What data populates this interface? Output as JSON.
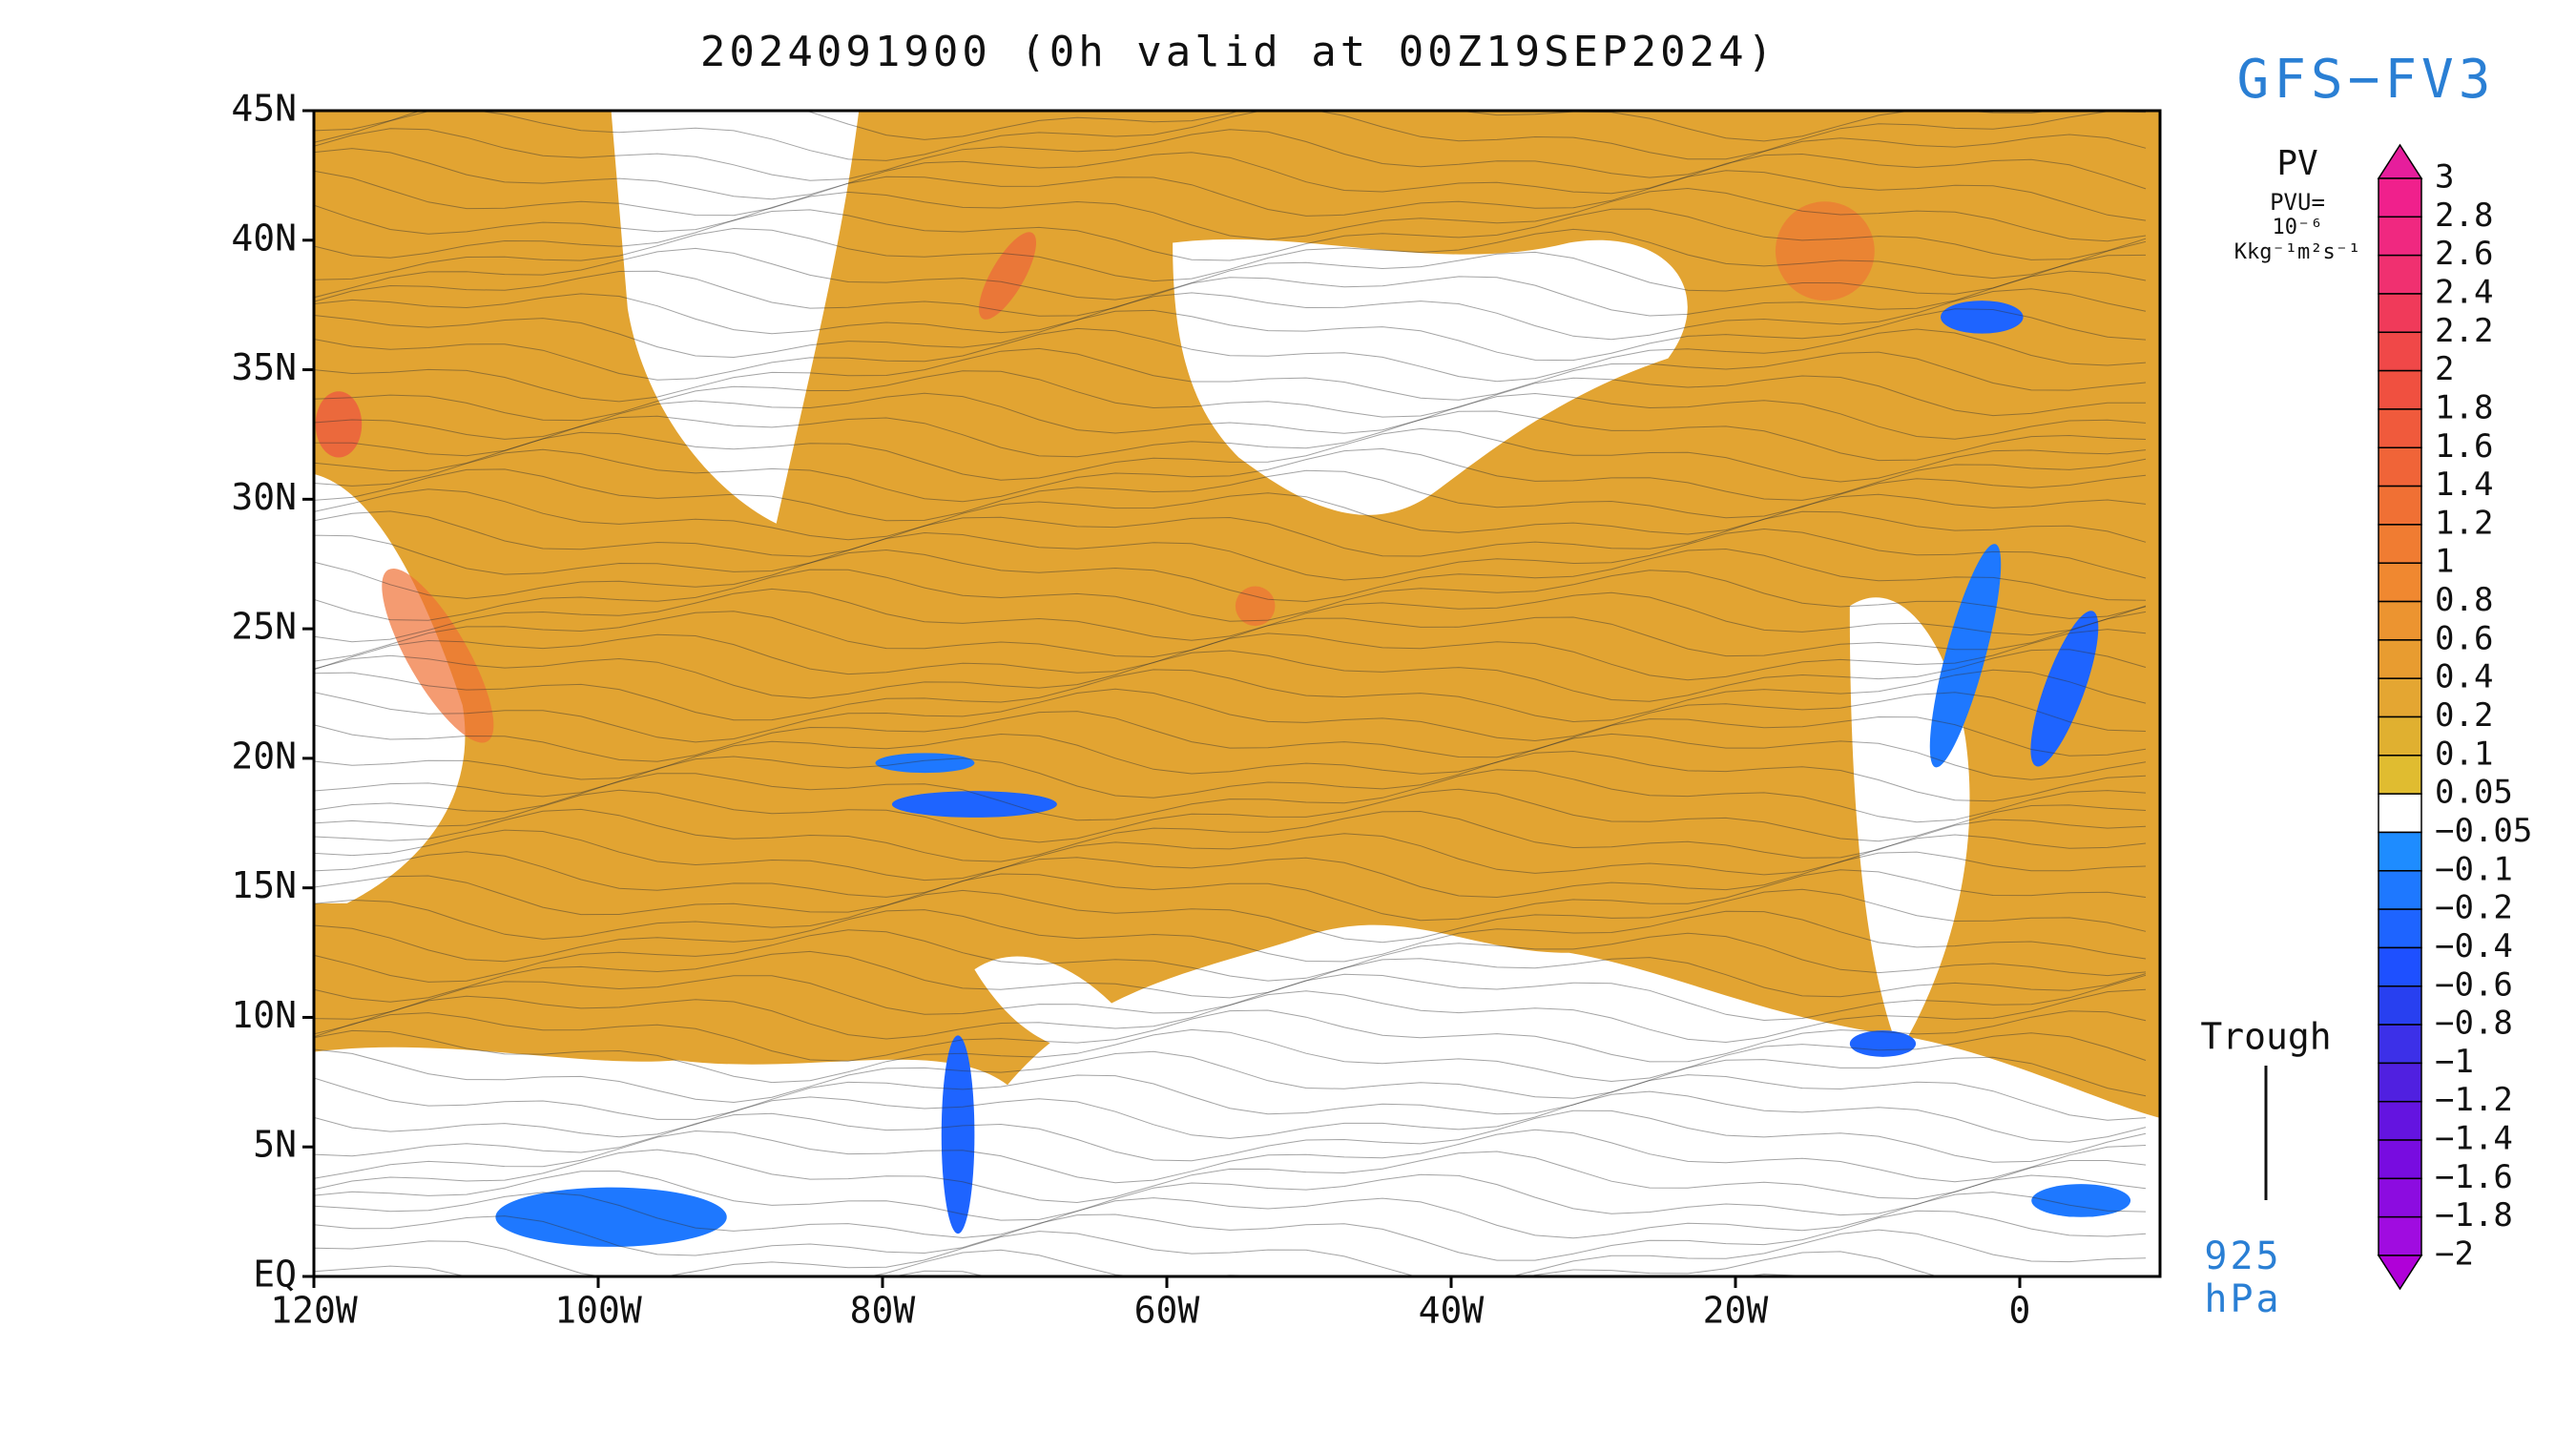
{
  "header": {
    "title": "2024091900 (0h valid at 00Z19SEP2024)",
    "model": "GFS−FV3"
  },
  "axes": {
    "lat_labels": [
      "45N",
      "40N",
      "35N",
      "30N",
      "25N",
      "20N",
      "15N",
      "10N",
      "5N",
      "EQ"
    ],
    "lon_labels": [
      "120W",
      "100W",
      "80W",
      "60W",
      "40W",
      "20W",
      "0"
    ]
  },
  "colorbar": {
    "title": "PV",
    "units": [
      "PVU=",
      "10⁻⁶",
      "Kkg⁻¹m²s⁻¹"
    ],
    "labels": [
      "3",
      "2.8",
      "2.6",
      "2.4",
      "2.2",
      "2",
      "1.8",
      "1.6",
      "1.4",
      "1.2",
      "1",
      "0.8",
      "0.6",
      "0.4",
      "0.2",
      "0.1",
      "0.05",
      "−0.05",
      "−0.1",
      "−0.2",
      "−0.4",
      "−0.6",
      "−0.8",
      "−1",
      "−1.2",
      "−1.4",
      "−1.6",
      "−1.8",
      "−2"
    ],
    "colors": [
      "#e61e9c",
      "#f0208c",
      "#f02880",
      "#f03070",
      "#f03a5a",
      "#f04848",
      "#f05040",
      "#f05a3c",
      "#f06438",
      "#f07034",
      "#f07c32",
      "#f08830",
      "#ec9430",
      "#e89c30",
      "#e4a632",
      "#e0b030",
      "#e0bc30",
      "#ffffff",
      "#1e8cff",
      "#1e78ff",
      "#1e64ff",
      "#1e50ff",
      "#2840f0",
      "#3c30e8",
      "#5020e0",
      "#6414e0",
      "#780ce0",
      "#8c0ce0",
      "#a00ce0",
      "#b000d8"
    ]
  },
  "legend": {
    "feature": "Trough",
    "level": "925",
    "level_unit": "hPa"
  }
}
